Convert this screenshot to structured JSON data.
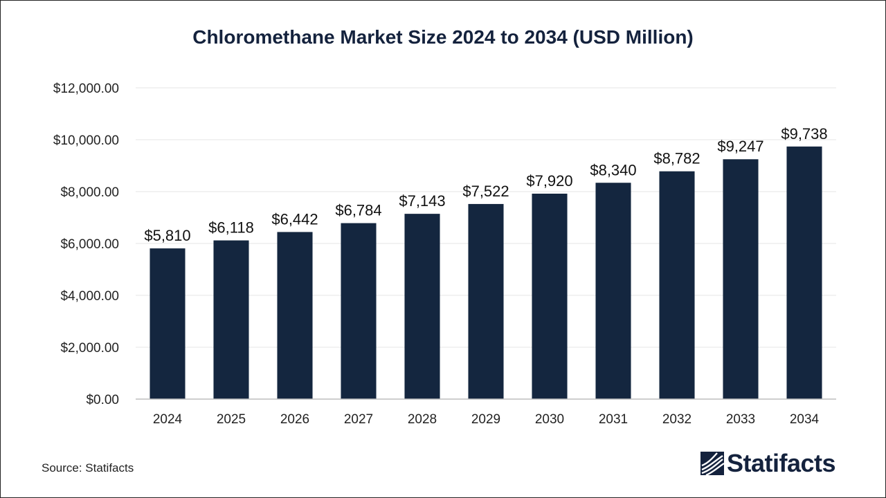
{
  "chart_data": {
    "type": "bar",
    "title": "Chloromethane Market Size 2024 to 2034 (USD Million)",
    "categories": [
      "2024",
      "2025",
      "2026",
      "2027",
      "2028",
      "2029",
      "2030",
      "2031",
      "2032",
      "2033",
      "2034"
    ],
    "values": [
      5810,
      6118,
      6442,
      6784,
      7143,
      7522,
      7920,
      8340,
      8782,
      9247,
      9738
    ],
    "data_labels": [
      "$5,810",
      "$6,118",
      "$6,442",
      "$6,784",
      "$7,143",
      "$7,522",
      "$7,920",
      "$8,340",
      "$8,782",
      "$9,247",
      "$9,738"
    ],
    "y_ticks": [
      0,
      2000,
      4000,
      6000,
      8000,
      10000,
      12000
    ],
    "y_tick_labels": [
      "$0.00",
      "$2,000.00",
      "$4,000.00",
      "$6,000.00",
      "$8,000.00",
      "$10,000.00",
      "$12,000.00"
    ],
    "ylim": [
      0,
      12000
    ],
    "xlabel": "",
    "ylabel": "",
    "grid": true,
    "legend": "none",
    "bar_color": "#14263f"
  },
  "source": "Source: Statifacts",
  "brand": {
    "name": "Statifacts",
    "logo_icon": "statifacts-logo-icon"
  }
}
